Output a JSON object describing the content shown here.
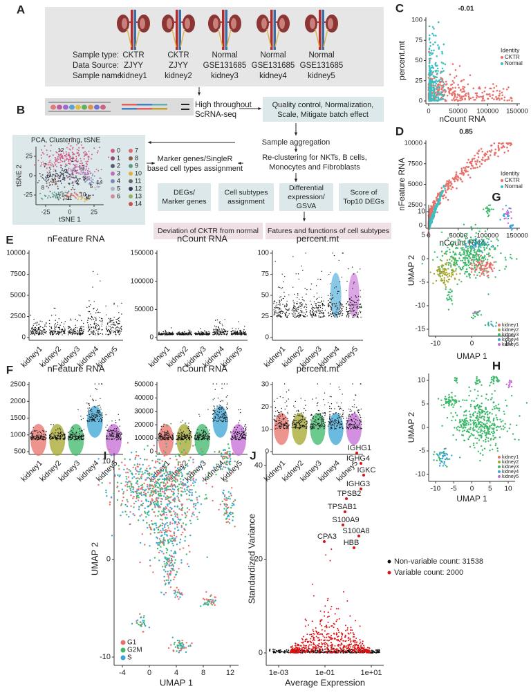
{
  "A": {
    "letter": "A",
    "row_labels": [
      "Sample type:",
      "Data Source:",
      "Sample name:"
    ],
    "samples": [
      {
        "type": "CKTR",
        "source": "ZJYY",
        "name": "kidney1"
      },
      {
        "type": "CKTR",
        "source": "ZJYY",
        "name": "kidney2"
      },
      {
        "type": "Normal",
        "source": "GSE131685",
        "name": "kidney3"
      },
      {
        "type": "Normal",
        "source": "GSE131685",
        "name": "kidney4"
      },
      {
        "type": "Normal",
        "source": "GSE131685",
        "name": "kidney5"
      }
    ]
  },
  "B": {
    "letter": "B",
    "seq_label": [
      "High throughout",
      "ScRNA-seq"
    ],
    "qc": [
      "Quality control, Normalization,",
      "Scale, Mitigate batch effect"
    ],
    "aggregation": "Sample aggregation",
    "tsne_title": "PCA, Clustering, tSNE",
    "tsne_xlabel": "tSNE 1",
    "tsne_ylabel": "tSNE 2",
    "tsne_xticks": [
      "-25",
      "0",
      "25"
    ],
    "tsne_yticks": [
      "-25",
      "0",
      "25"
    ],
    "tsne_cluster_labels": [
      "12",
      "7",
      "1",
      "9",
      "6",
      "13",
      "3",
      "2",
      "14",
      "5",
      "10",
      "0",
      "11",
      "4",
      "8"
    ],
    "clusters": [
      "0",
      "1",
      "2",
      "3",
      "4",
      "5",
      "6",
      "7",
      "8",
      "9",
      "10",
      "11",
      "12",
      "13",
      "14"
    ],
    "marker": [
      "Marker genes/SingleR",
      "based cell types assignment"
    ],
    "recluster": [
      "Re-clustering for NKTs, B cells,",
      "Monocytes and Fibroblasts"
    ],
    "steps": [
      [
        "DEGs/",
        "Marker genes"
      ],
      [
        "Cell subtypes",
        "assignment"
      ],
      [
        "Differential",
        "expression/",
        "GSVA"
      ],
      [
        "Score of",
        "Top10 DEGs"
      ]
    ],
    "outcomes": [
      "Deviation of CKTR from normal",
      "Fatures and functions of cell subtypes"
    ]
  },
  "C": {
    "letter": "C",
    "title": "-0.01",
    "xlabel": "nCount RNA",
    "ylabel": "percent.mt",
    "xticks": [
      "0",
      "50000",
      "100000",
      "150000"
    ],
    "yticks": [
      "0",
      "25",
      "50",
      "75",
      "100"
    ],
    "legend_title": "Identity",
    "legend": [
      "CKTR",
      "Normal"
    ]
  },
  "D": {
    "letter": "D",
    "title": "0.85",
    "xlabel": "nCount RNA",
    "ylabel": "nFeature RNA",
    "xticks": [
      "0",
      "50000",
      "100000",
      "150000"
    ],
    "yticks": [
      "0",
      "2500",
      "5000",
      "7500",
      "10000"
    ],
    "legend_title": "Identity",
    "legend": [
      "CKTR",
      "Normal"
    ]
  },
  "E": {
    "letter": "E",
    "categories": [
      "kidney1",
      "kidney2",
      "kidney3",
      "kidney4",
      "kidney5"
    ],
    "plots": [
      {
        "title": "nFeature RNA",
        "yticks": [
          "0",
          "2500",
          "5000",
          "7500",
          "10000"
        ]
      },
      {
        "title": "nCount RNA",
        "yticks": [
          "0",
          "50000",
          "100000",
          "150000"
        ]
      },
      {
        "title": "percent.mt",
        "yticks": [
          "0",
          "25",
          "50",
          "75",
          "100"
        ]
      }
    ]
  },
  "F": {
    "letter": "F",
    "categories": [
      "kidney1",
      "kidney2",
      "kidney3",
      "kidney4",
      "kidney5"
    ],
    "plots": [
      {
        "title": "nFeature RNA",
        "yticks": [
          "500",
          "1000",
          "1500",
          "2000",
          "2500"
        ]
      },
      {
        "title": "nCount RNA",
        "yticks": [
          "0",
          "10000",
          "20000",
          "30000",
          "40000",
          "50000"
        ]
      },
      {
        "title": "percent.mt",
        "yticks": [
          "0",
          "10",
          "20",
          "30"
        ]
      }
    ]
  },
  "G": {
    "letter": "G",
    "xlabel": "UMAP 1",
    "ylabel": "UMAP 2",
    "xticks": [
      "-10",
      "0",
      "10"
    ],
    "yticks": [
      "-15",
      "-10",
      "-5",
      "0",
      "5",
      "10"
    ],
    "legend": [
      "kidney1",
      "kidney2",
      "kidney3",
      "kidney4",
      "kidney5"
    ]
  },
  "H": {
    "letter": "H",
    "xlabel": "UMAP 1",
    "ylabel": "UMAP 2",
    "xticks": [
      "-10",
      "-5",
      "0",
      "5",
      "10"
    ],
    "yticks": [
      "-10",
      "-5",
      "0",
      "5",
      "10"
    ],
    "legend": [
      "kidney1",
      "kidney2",
      "kidney3",
      "kidney4",
      "kidney5"
    ]
  },
  "I": {
    "letter": "I",
    "xlabel": "UMAP 1",
    "ylabel": "UMAP 2",
    "xticks": [
      "-4",
      "0",
      "4",
      "8",
      "12"
    ],
    "yticks": [
      "-10",
      "0",
      "10"
    ],
    "legend": [
      "G1",
      "G2M",
      "S"
    ]
  },
  "J": {
    "letter": "J",
    "xlabel": "Average Expression",
    "ylabel": "Standardized Variance",
    "xticks": [
      "1e-03",
      "1e-01",
      "1e+01"
    ],
    "yticks": [
      "0",
      "20",
      "40"
    ],
    "genes": [
      "IGHG1",
      "IGHG4",
      "IGKC",
      "IGHG3",
      "TPSB2",
      "TPSAB1",
      "S100A9",
      "S100A8",
      "CPA3",
      "HBB"
    ],
    "legend": [
      "Non-variable count: 31538",
      "Variable count: 2000"
    ]
  }
}
